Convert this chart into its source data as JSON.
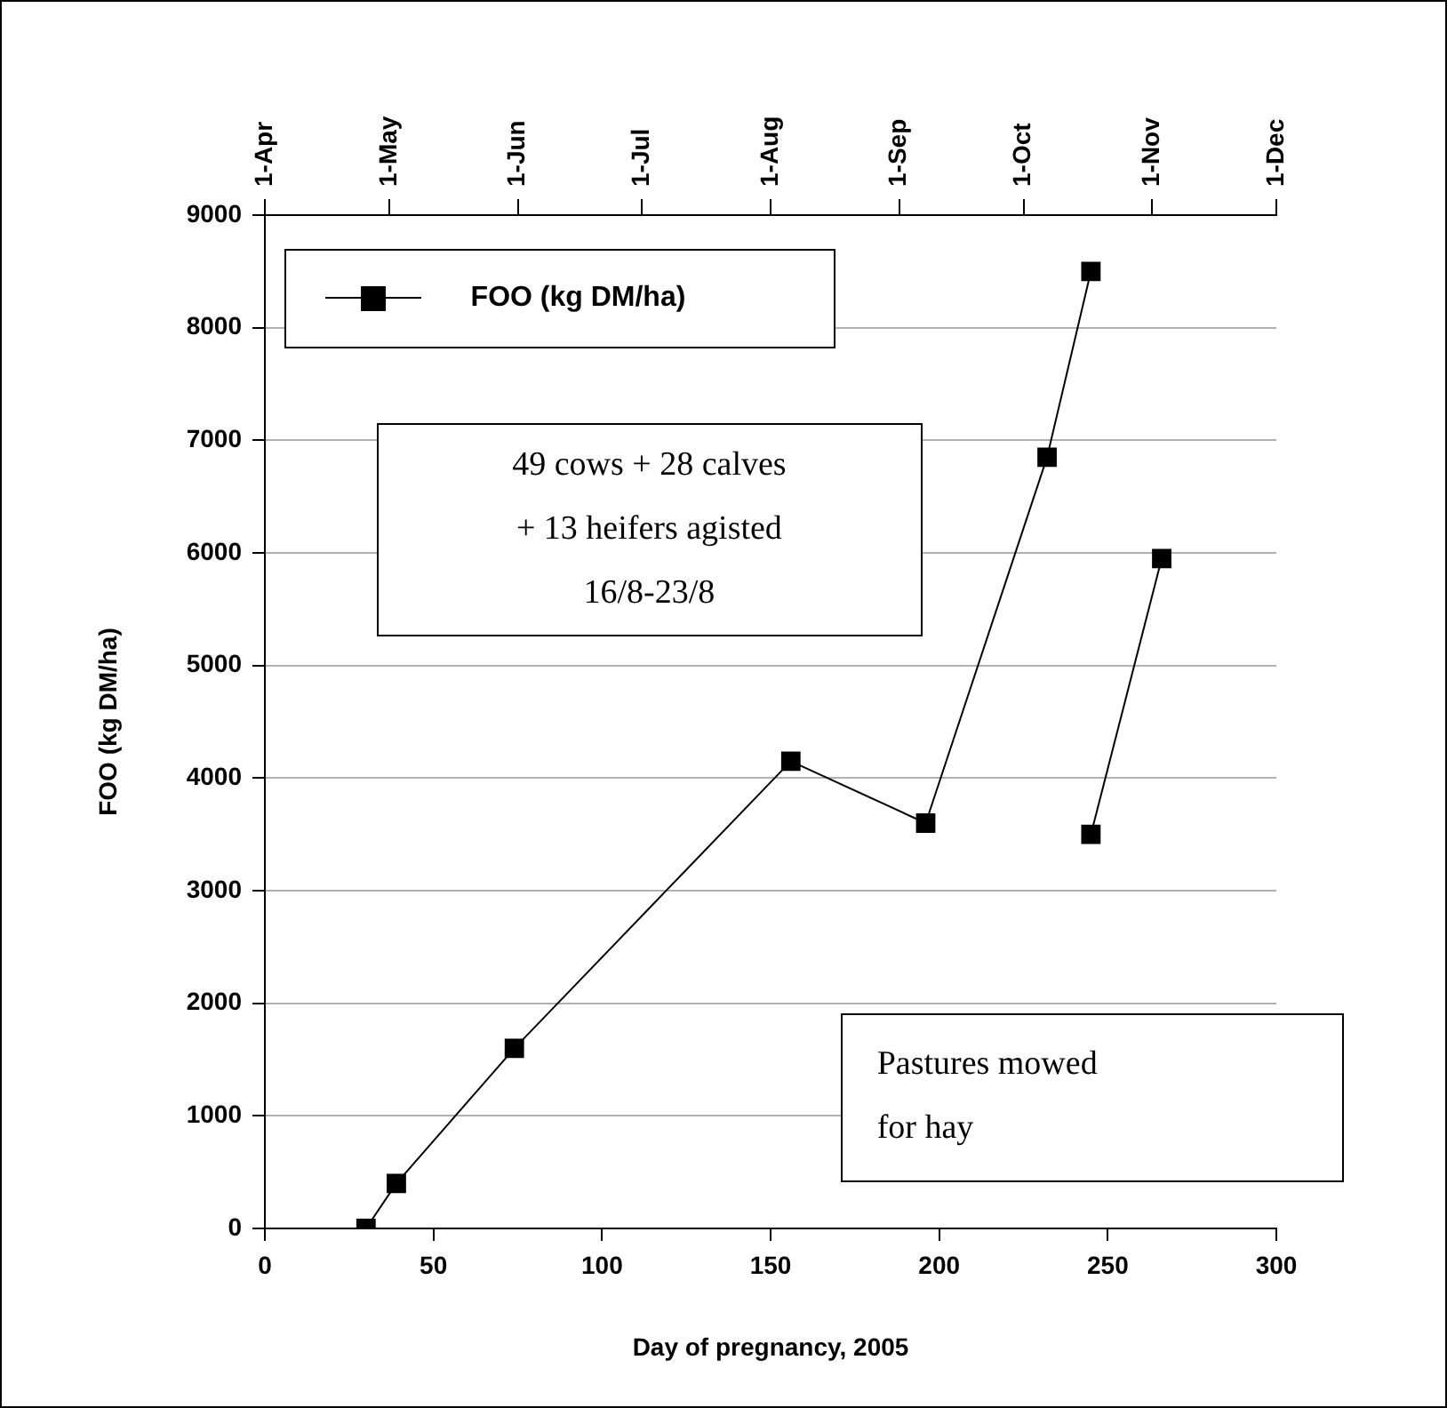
{
  "chart_data": {
    "type": "line",
    "xlabel": "Day of pregnancy, 2005",
    "ylabel": "FOO (kg DM/ha)",
    "xlim": [
      0,
      300
    ],
    "xticks": [
      0,
      50,
      100,
      150,
      200,
      250,
      300
    ],
    "ylim": [
      0,
      9000
    ],
    "yticks": [
      0,
      1000,
      2000,
      3000,
      4000,
      5000,
      6000,
      7000,
      8000,
      9000
    ],
    "x2lim": [
      "2005-04-01",
      "2005-12-01"
    ],
    "x2ticks": [
      {
        "value": "2005-04-01",
        "label": "1-Apr"
      },
      {
        "value": "2005-05-01",
        "label": "1-May"
      },
      {
        "value": "2005-06-01",
        "label": "1-Jun"
      },
      {
        "value": "2005-07-01",
        "label": "1-Jul"
      },
      {
        "value": "2005-08-01",
        "label": "1-Aug"
      },
      {
        "value": "2005-09-01",
        "label": "1-Sep"
      },
      {
        "value": "2005-10-01",
        "label": "1-Oct"
      },
      {
        "value": "2005-11-01",
        "label": "1-Nov"
      },
      {
        "value": "2005-12-01",
        "label": "1-Dec"
      }
    ],
    "series": [
      {
        "name": "FOO (kg DM/ha)",
        "color": "#000000",
        "x": [
          30,
          39,
          74,
          156,
          196,
          232,
          245
        ],
        "values": [
          0,
          400,
          1600,
          4150,
          3600,
          6850,
          8500
        ]
      },
      {
        "color": "#000000",
        "x": [
          245,
          266
        ],
        "values": [
          3500,
          5950
        ]
      }
    ],
    "annotations": [
      "49 cows + 28 calves\n+ 13 heifers agisted\n16/8-23/8",
      "Pastures mowed\nfor hay"
    ],
    "grid": "y",
    "legend": "top left",
    "marker": "square",
    "line_style": "solid"
  }
}
